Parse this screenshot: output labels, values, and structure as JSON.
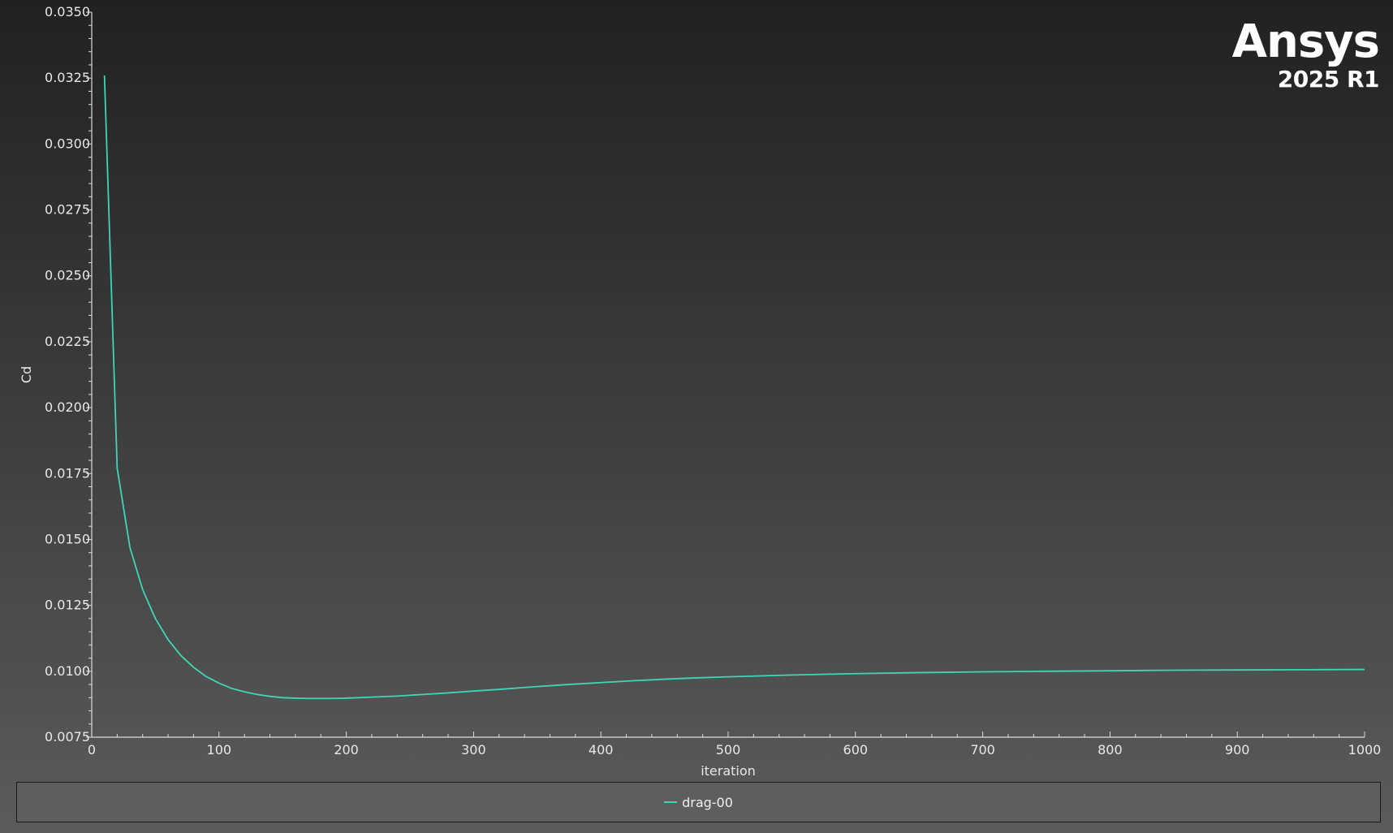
{
  "branding": {
    "name": "Ansys",
    "version": "2025 R1"
  },
  "chart_data": {
    "type": "line",
    "title": "",
    "xlabel": "iteration",
    "ylabel": "Cd",
    "xlim": [
      0,
      1000
    ],
    "ylim": [
      0.0075,
      0.035
    ],
    "x_ticks": [
      0,
      100,
      200,
      300,
      400,
      500,
      600,
      700,
      800,
      900,
      1000
    ],
    "x_tick_labels": [
      "0",
      "100",
      "200",
      "300",
      "400",
      "500",
      "600",
      "700",
      "800",
      "900",
      "1000"
    ],
    "y_ticks": [
      0.0075,
      0.01,
      0.0125,
      0.015,
      0.0175,
      0.02,
      0.0225,
      0.025,
      0.0275,
      0.03,
      0.0325,
      0.035
    ],
    "y_tick_labels": [
      "0.0075",
      "0.0100",
      "0.0125",
      "0.0150",
      "0.0175",
      "0.0200",
      "0.0225",
      "0.0250",
      "0.0275",
      "0.0300",
      "0.0325",
      "0.0350"
    ],
    "grid": false,
    "legend_position": "bottom",
    "series": [
      {
        "name": "drag-00",
        "color": "#3ed6b4",
        "x": [
          10,
          20,
          30,
          40,
          50,
          60,
          70,
          80,
          90,
          100,
          110,
          120,
          130,
          140,
          150,
          160,
          170,
          180,
          190,
          200,
          220,
          240,
          260,
          280,
          300,
          325,
          350,
          375,
          400,
          425,
          450,
          475,
          500,
          550,
          600,
          650,
          700,
          750,
          800,
          850,
          900,
          950,
          1000
        ],
        "y": [
          0.0326,
          0.0177,
          0.0147,
          0.0131,
          0.012,
          0.0112,
          0.0106,
          0.01015,
          0.0098,
          0.00955,
          0.00935,
          0.00922,
          0.00912,
          0.00905,
          0.009,
          0.00898,
          0.00897,
          0.00897,
          0.00897,
          0.00898,
          0.00902,
          0.00906,
          0.00912,
          0.00918,
          0.00925,
          0.00933,
          0.00942,
          0.0095,
          0.00957,
          0.00964,
          0.0097,
          0.00975,
          0.00979,
          0.00986,
          0.00991,
          0.00995,
          0.00998,
          0.01,
          0.01002,
          0.01004,
          0.01005,
          0.01006,
          0.01007
        ]
      }
    ]
  }
}
